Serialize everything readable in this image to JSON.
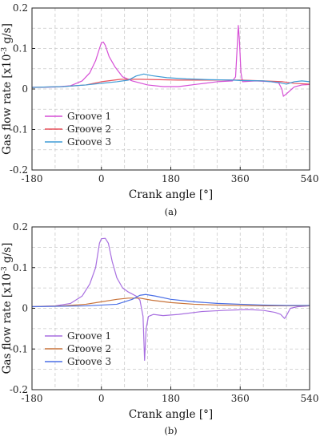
{
  "chart_data": [
    {
      "type": "line",
      "panel": "(a)",
      "xlabel": "Crank angle [°]",
      "ylabel": "Gas flow rate [x10",
      "ylabel_sup": "-3",
      "ylabel_tail": " g/s]",
      "xlim": [
        -180,
        540
      ],
      "ylim": [
        -0.2,
        0.2
      ],
      "xticks": [
        -180,
        0,
        180,
        360,
        540
      ],
      "yticks": [
        -0.2,
        -0.1,
        0,
        0.1,
        0.2
      ],
      "x_tick_labels": [
        "-180",
        "0",
        "180",
        "360",
        "540"
      ],
      "y_tick_labels": [
        "-0.2",
        "-0.1",
        "0",
        "0.1",
        "0.2"
      ],
      "grid": true,
      "legend_position": "lower-left",
      "series": [
        {
          "name": "Groove 1",
          "color": "#d64fd6",
          "points": [
            [
              -180,
              0.004
            ],
            [
              -120,
              0.005
            ],
            [
              -80,
              0.008
            ],
            [
              -50,
              0.02
            ],
            [
              -30,
              0.04
            ],
            [
              -15,
              0.07
            ],
            [
              -5,
              0.1
            ],
            [
              0,
              0.114
            ],
            [
              5,
              0.116
            ],
            [
              10,
              0.108
            ],
            [
              20,
              0.08
            ],
            [
              35,
              0.055
            ],
            [
              55,
              0.03
            ],
            [
              80,
              0.02
            ],
            [
              120,
              0.01
            ],
            [
              160,
              0.006
            ],
            [
              200,
              0.006
            ],
            [
              250,
              0.012
            ],
            [
              300,
              0.018
            ],
            [
              340,
              0.02
            ],
            [
              348,
              0.03
            ],
            [
              352,
              0.1
            ],
            [
              355,
              0.157
            ],
            [
              358,
              0.12
            ],
            [
              362,
              0.04
            ],
            [
              366,
              0.018
            ],
            [
              400,
              0.02
            ],
            [
              440,
              0.018
            ],
            [
              460,
              0.015
            ],
            [
              468,
              0.0
            ],
            [
              472,
              -0.018
            ],
            [
              480,
              -0.012
            ],
            [
              500,
              0.005
            ],
            [
              520,
              0.01
            ],
            [
              540,
              0.011
            ]
          ]
        },
        {
          "name": "Groove 2",
          "color": "#e8505b",
          "points": [
            [
              -180,
              0.004
            ],
            [
              -100,
              0.006
            ],
            [
              -40,
              0.01
            ],
            [
              0,
              0.018
            ],
            [
              50,
              0.024
            ],
            [
              100,
              0.024
            ],
            [
              150,
              0.023
            ],
            [
              200,
              0.022
            ],
            [
              260,
              0.022
            ],
            [
              320,
              0.022
            ],
            [
              360,
              0.022
            ],
            [
              420,
              0.02
            ],
            [
              470,
              0.018
            ],
            [
              500,
              0.014
            ],
            [
              540,
              0.012
            ]
          ]
        },
        {
          "name": "Groove 3",
          "color": "#3e9bd6",
          "points": [
            [
              -180,
              0.004
            ],
            [
              -100,
              0.006
            ],
            [
              -40,
              0.01
            ],
            [
              0,
              0.014
            ],
            [
              40,
              0.018
            ],
            [
              70,
              0.022
            ],
            [
              90,
              0.032
            ],
            [
              110,
              0.037
            ],
            [
              130,
              0.033
            ],
            [
              170,
              0.028
            ],
            [
              220,
              0.025
            ],
            [
              280,
              0.023
            ],
            [
              340,
              0.022
            ],
            [
              360,
              0.021
            ],
            [
              420,
              0.02
            ],
            [
              460,
              0.016
            ],
            [
              480,
              0.012
            ],
            [
              500,
              0.018
            ],
            [
              520,
              0.02
            ],
            [
              540,
              0.018
            ]
          ]
        }
      ]
    },
    {
      "type": "line",
      "panel": "(b)",
      "xlabel": "Crank angle [°]",
      "ylabel": "Gas flow rate [x10",
      "ylabel_sup": "-3",
      "ylabel_tail": " g/s]",
      "xlim": [
        -180,
        540
      ],
      "ylim": [
        -0.2,
        0.2
      ],
      "xticks": [
        -180,
        0,
        180,
        360,
        540
      ],
      "yticks": [
        -0.2,
        -0.1,
        0,
        0.1,
        0.2
      ],
      "x_tick_labels": [
        "-180",
        "0",
        "180",
        "360",
        "540"
      ],
      "y_tick_labels": [
        "-0.2",
        "-0.1",
        "0",
        "0.1",
        "0.2"
      ],
      "grid": true,
      "legend_position": "lower-left",
      "series": [
        {
          "name": "Groove 1",
          "color": "#a86fe0",
          "points": [
            [
              -180,
              0.004
            ],
            [
              -120,
              0.006
            ],
            [
              -80,
              0.012
            ],
            [
              -50,
              0.03
            ],
            [
              -30,
              0.06
            ],
            [
              -15,
              0.1
            ],
            [
              -5,
              0.16
            ],
            [
              0,
              0.171
            ],
            [
              10,
              0.172
            ],
            [
              18,
              0.16
            ],
            [
              28,
              0.115
            ],
            [
              40,
              0.075
            ],
            [
              55,
              0.05
            ],
            [
              70,
              0.04
            ],
            [
              90,
              0.03
            ],
            [
              100,
              0.02
            ],
            [
              108,
              -0.02
            ],
            [
              112,
              -0.128
            ],
            [
              116,
              -0.05
            ],
            [
              122,
              -0.02
            ],
            [
              135,
              -0.015
            ],
            [
              160,
              -0.018
            ],
            [
              200,
              -0.015
            ],
            [
              260,
              -0.008
            ],
            [
              320,
              -0.005
            ],
            [
              380,
              -0.003
            ],
            [
              420,
              -0.005
            ],
            [
              450,
              -0.01
            ],
            [
              465,
              -0.015
            ],
            [
              475,
              -0.025
            ],
            [
              480,
              -0.018
            ],
            [
              490,
              0.0
            ],
            [
              510,
              0.004
            ],
            [
              540,
              0.006
            ]
          ]
        },
        {
          "name": "Groove 2",
          "color": "#c8733a",
          "points": [
            [
              -180,
              0.004
            ],
            [
              -100,
              0.006
            ],
            [
              -40,
              0.01
            ],
            [
              0,
              0.016
            ],
            [
              40,
              0.022
            ],
            [
              70,
              0.025
            ],
            [
              100,
              0.025
            ],
            [
              130,
              0.02
            ],
            [
              180,
              0.014
            ],
            [
              240,
              0.01
            ],
            [
              300,
              0.008
            ],
            [
              360,
              0.007
            ],
            [
              420,
              0.006
            ],
            [
              480,
              0.006
            ],
            [
              540,
              0.006
            ]
          ]
        },
        {
          "name": "Groove 3",
          "color": "#4a6fe6",
          "points": [
            [
              -180,
              0.004
            ],
            [
              -100,
              0.005
            ],
            [
              -40,
              0.006
            ],
            [
              0,
              0.008
            ],
            [
              40,
              0.01
            ],
            [
              80,
              0.022
            ],
            [
              100,
              0.032
            ],
            [
              115,
              0.034
            ],
            [
              140,
              0.03
            ],
            [
              180,
              0.022
            ],
            [
              240,
              0.016
            ],
            [
              300,
              0.012
            ],
            [
              360,
              0.01
            ],
            [
              420,
              0.008
            ],
            [
              480,
              0.007
            ],
            [
              540,
              0.007
            ]
          ]
        }
      ]
    }
  ]
}
